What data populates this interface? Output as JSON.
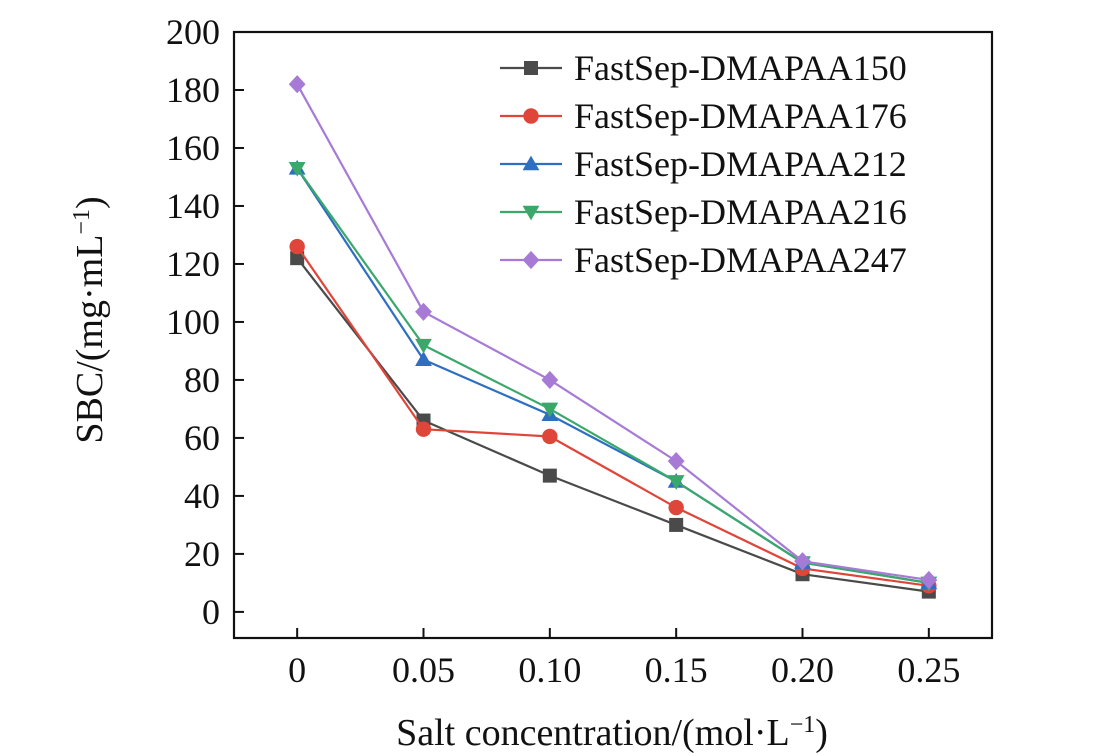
{
  "chart_data": {
    "type": "line",
    "title": "",
    "xlabel_main": "Salt concentration/(mol·L",
    "xlabel_sup": "−1",
    "xlabel_tail": ")",
    "ylabel_main": "SBC/(mg·mL",
    "ylabel_sup": "−1",
    "ylabel_tail": ")",
    "x": [
      0,
      0.05,
      0.1,
      0.15,
      0.2,
      0.25
    ],
    "x_tick_labels": [
      "0",
      "0.05",
      "0.10",
      "0.15",
      "0.20",
      "0.25"
    ],
    "xlim": [
      -0.025,
      0.275
    ],
    "ylim": [
      -9,
      200
    ],
    "y_ticks": [
      0,
      20,
      40,
      60,
      80,
      100,
      120,
      140,
      160,
      180,
      200
    ],
    "legend_position": "top-right",
    "grid": false,
    "series": [
      {
        "name": "FastSep-DMAPAA150",
        "color": "#4a4a4a",
        "marker": "square",
        "values": [
          122,
          66,
          47,
          30,
          13,
          7
        ]
      },
      {
        "name": "FastSep-DMAPAA176",
        "color": "#e0453a",
        "marker": "circle",
        "values": [
          126,
          63,
          60.5,
          36,
          15,
          9
        ]
      },
      {
        "name": "FastSep-DMAPAA212",
        "color": "#2e6fc2",
        "marker": "triangle-up",
        "values": [
          153,
          87,
          68,
          45,
          17,
          10
        ]
      },
      {
        "name": "FastSep-DMAPAA216",
        "color": "#3aa86b",
        "marker": "triangle-down",
        "values": [
          153,
          92,
          70,
          45,
          17,
          10
        ]
      },
      {
        "name": "FastSep-DMAPAA247",
        "color": "#a77ad6",
        "marker": "diamond",
        "values": [
          182,
          103.5,
          80,
          52,
          17.5,
          11
        ]
      }
    ]
  }
}
